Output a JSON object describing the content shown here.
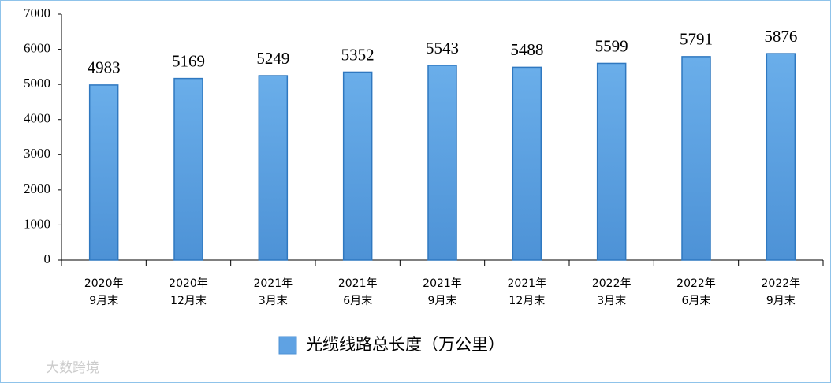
{
  "chart_data": {
    "type": "bar",
    "categories": [
      [
        "2020年",
        "9月末"
      ],
      [
        "2020年",
        "12月末"
      ],
      [
        "2021年",
        "3月末"
      ],
      [
        "2021年",
        "6月末"
      ],
      [
        "2021年",
        "9月末"
      ],
      [
        "2021年",
        "12月末"
      ],
      [
        "2022年",
        "3月末"
      ],
      [
        "2022年",
        "6月末"
      ],
      [
        "2022年",
        "9月末"
      ]
    ],
    "series": [
      {
        "name": "光缆线路总长度（万公里）",
        "color": "#5fa2e3",
        "values": [
          4983,
          5169,
          5249,
          5352,
          5543,
          5488,
          5599,
          5791,
          5876
        ]
      }
    ],
    "ylim": [
      0,
      7000
    ],
    "yticks": [
      0,
      1000,
      2000,
      3000,
      4000,
      5000,
      6000,
      7000
    ],
    "legend": "bottom",
    "watermark": "大数跨境"
  }
}
